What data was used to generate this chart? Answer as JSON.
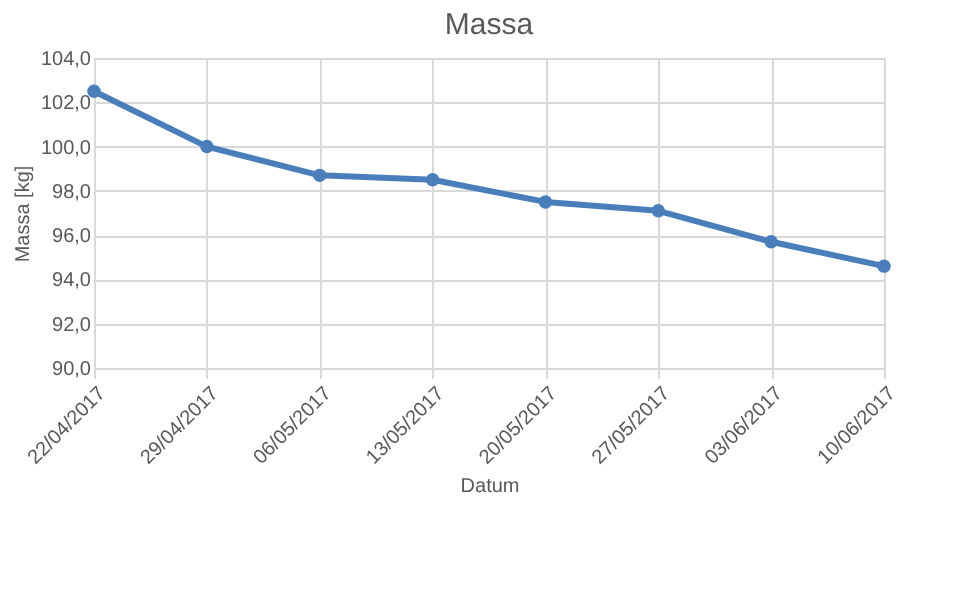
{
  "chart_data": {
    "type": "line",
    "title": "Massa",
    "xlabel": "Datum",
    "ylabel": "Massa [kg]",
    "categories": [
      "22/04/2017",
      "29/04/2017",
      "06/05/2017",
      "13/05/2017",
      "20/05/2017",
      "27/05/2017",
      "03/06/2017",
      "10/06/2017"
    ],
    "series": [
      {
        "color": "#4a7ebb",
        "values": [
          102.5,
          100.0,
          98.7,
          98.5,
          97.5,
          97.1,
          95.7,
          94.6
        ]
      }
    ],
    "ylim": [
      90,
      104
    ],
    "yticks": [
      {
        "value": 90,
        "label": "90,0"
      },
      {
        "value": 92,
        "label": "92,0"
      },
      {
        "value": 94,
        "label": "94,0"
      },
      {
        "value": 96,
        "label": "96,0"
      },
      {
        "value": 98,
        "label": "98,0"
      },
      {
        "value": 100,
        "label": "100,0"
      },
      {
        "value": 102,
        "label": "102,0"
      },
      {
        "value": 104,
        "label": "104,0"
      }
    ],
    "grid": true,
    "marker": "circle",
    "line_style": "solid"
  }
}
